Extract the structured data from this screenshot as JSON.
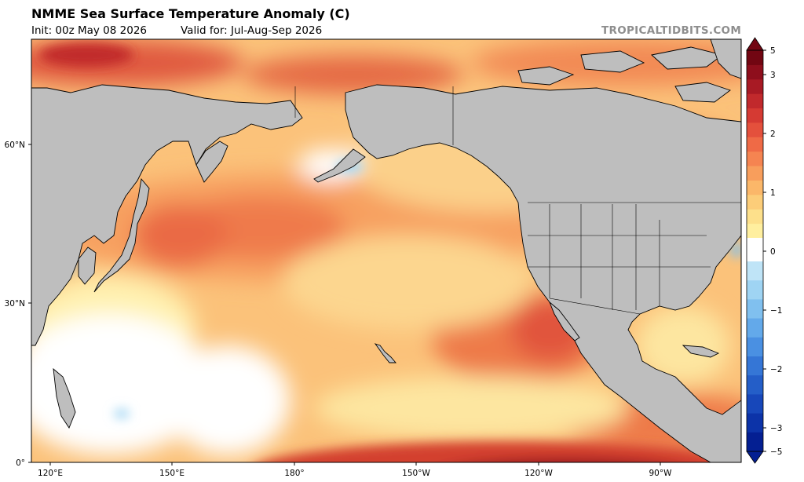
{
  "header": {
    "title": "NMME Sea Surface Temperature Anomaly (C)",
    "init_text": "Init: 00z May 08 2026",
    "valid_text": "Valid for: Jul-Aug-Sep 2026",
    "brand": "TROPICALTIDBITS.COM"
  },
  "map": {
    "lat_labels": [
      "60°N",
      "30°N",
      "0°"
    ],
    "lon_labels": [
      "120°E",
      "150°E",
      "180°",
      "150°W",
      "120°W",
      "90°W"
    ],
    "land_color": "#bebebe"
  },
  "colorbar": {
    "labels": [
      "5",
      "3",
      "2",
      "1",
      "0",
      "−1",
      "−2",
      "−3",
      "−5"
    ],
    "warm_colors": [
      "#ffef9f",
      "#fde08b",
      "#fccd79",
      "#fbb769",
      "#f89e5c",
      "#f58451",
      "#ef6a46",
      "#e4503c",
      "#d53a33",
      "#c1292c",
      "#a81a24",
      "#8e0e1c",
      "#720612"
    ],
    "cool_colors": [
      "#bfe4f7",
      "#9fd4f3",
      "#80c0ef",
      "#63a9ea",
      "#4a90e2",
      "#3576d6",
      "#245ec8",
      "#1747ba",
      "#0c33a8",
      "#041f92"
    ]
  }
}
